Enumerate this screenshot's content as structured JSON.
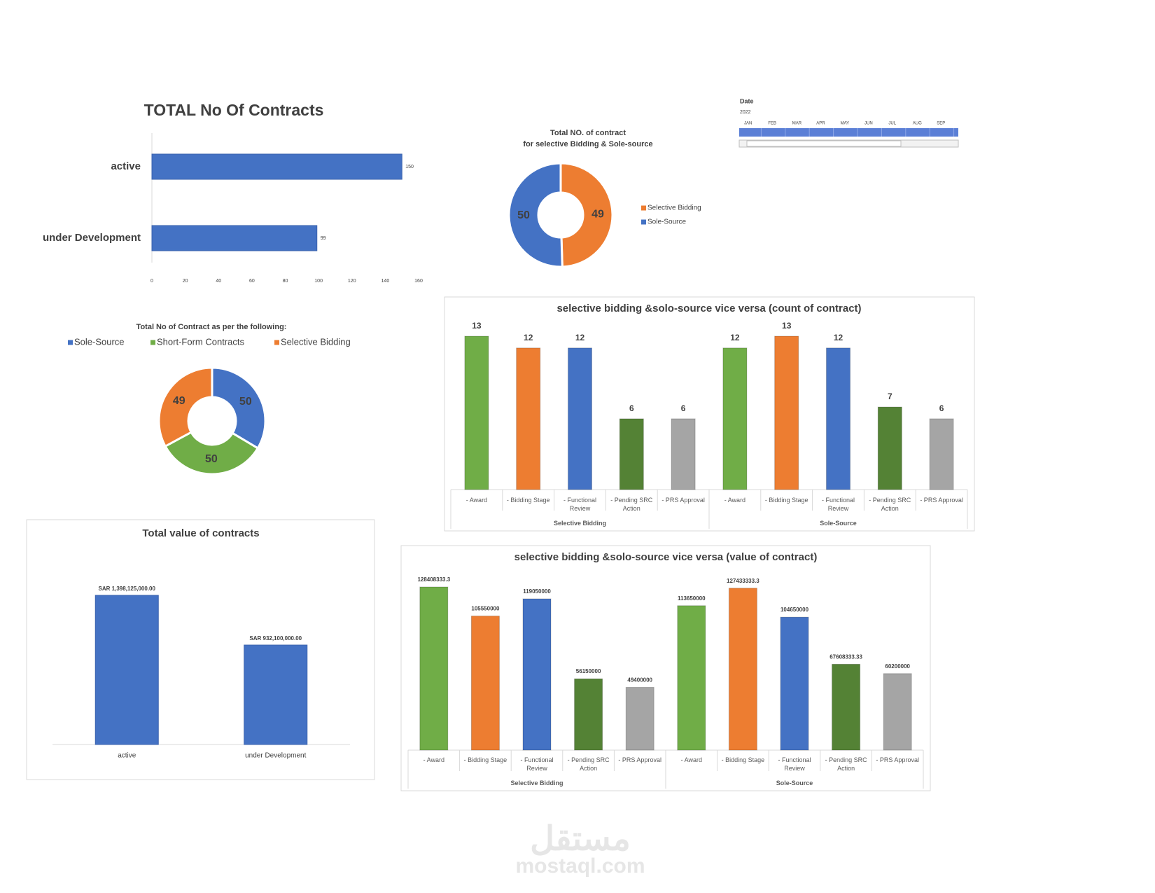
{
  "chart_data": [
    {
      "type": "bar",
      "orientation": "horizontal",
      "title": "TOTAL No  Of  Contracts",
      "categories": [
        "active",
        "under Development"
      ],
      "values": [
        150,
        99
      ],
      "color": "#4472c4",
      "xlim": [
        0,
        160
      ],
      "xticks": [
        0,
        20,
        40,
        60,
        80,
        100,
        120,
        140,
        160
      ]
    },
    {
      "type": "pie",
      "title": "Total  NO. of contract",
      "subtitle": "for selective Bidding & Sole-source",
      "categories": [
        "Selective Bidding",
        "Sole-Source"
      ],
      "values": [
        49,
        50
      ],
      "colors": [
        "#ed7d31",
        "#4472c4"
      ],
      "legend": "right"
    },
    {
      "type": "pie",
      "title": "Total No of Contract as per the following:",
      "categories": [
        "Sole-Source",
        "Short-Form Contracts",
        "Selective Bidding"
      ],
      "values": [
        50,
        50,
        49
      ],
      "colors": [
        "#4472c4",
        "#70ad47",
        "#ed7d31"
      ],
      "legend": "top"
    },
    {
      "type": "bar",
      "title": "Total value of contracts",
      "categories": [
        "active",
        "under Development"
      ],
      "values": [
        1398125000,
        932100000
      ],
      "value_labels": [
        "SAR 1,398,125,000.00",
        "SAR 932,100,000.00"
      ],
      "color": "#4472c4"
    },
    {
      "type": "bar",
      "title": "selective bidding &solo-source vice versa (count of contract)",
      "categories": [
        "- Award",
        "- Bidding Stage",
        "- Functional Review",
        "- Pending SRC Action",
        "- PRS Approval"
      ],
      "colors": [
        "#70ad47",
        "#ed7d31",
        "#4472c4",
        "#548235",
        "#a5a5a5"
      ],
      "series": [
        {
          "name": "Selective Bidding",
          "values": [
            13,
            12,
            12,
            6,
            6
          ]
        },
        {
          "name": "Sole-Source",
          "values": [
            12,
            13,
            12,
            7,
            6
          ]
        }
      ]
    },
    {
      "type": "bar",
      "title": "selective bidding &solo-source vice versa (value of contract)",
      "categories": [
        "- Award",
        "- Bidding Stage",
        "- Functional Review",
        "- Pending SRC Action",
        "- PRS Approval"
      ],
      "colors": [
        "#70ad47",
        "#ed7d31",
        "#4472c4",
        "#548235",
        "#a5a5a5"
      ],
      "series": [
        {
          "name": "Selective Bidding",
          "values": [
            128408333.3,
            105550000,
            119050000,
            56150000,
            49400000
          ]
        },
        {
          "name": "Sole-Source",
          "values": [
            113650000,
            127433333.3,
            104650000,
            67608333.33,
            60200000
          ]
        }
      ]
    }
  ],
  "timeline": {
    "label": "Date",
    "year": "2022",
    "months": [
      "JAN",
      "FEB",
      "MAR",
      "APR",
      "MAY",
      "JUN",
      "JUL",
      "AUG",
      "SEP"
    ]
  },
  "watermark": {
    "arabic": "مستقل",
    "latin": "mostaql.com"
  }
}
